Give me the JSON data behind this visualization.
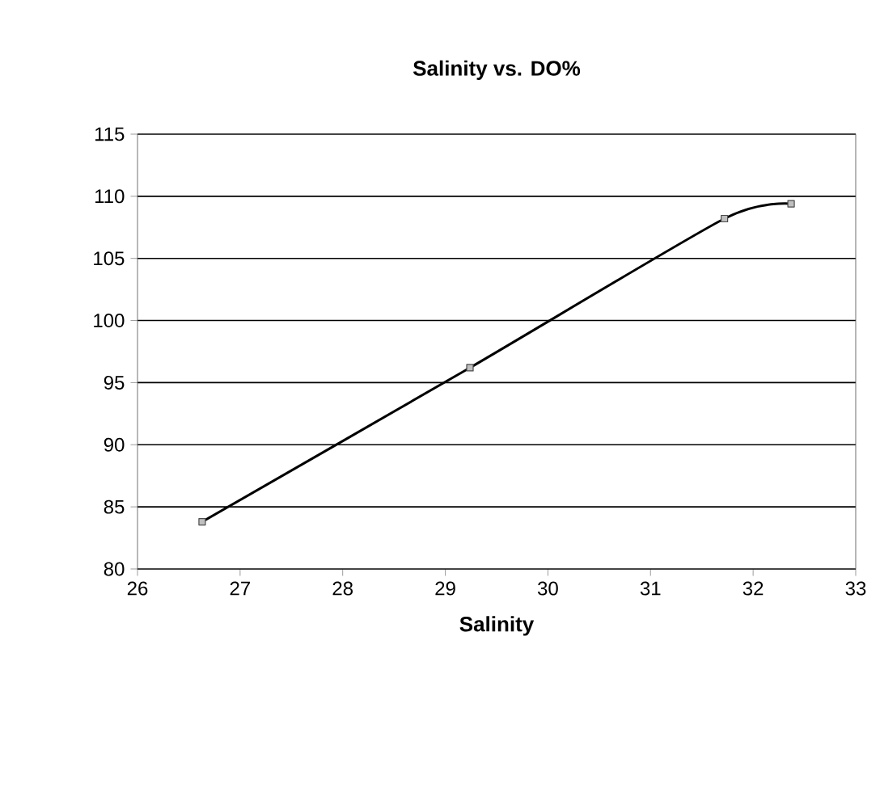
{
  "chart_data": {
    "type": "line",
    "title": "Salinity vs. DO%",
    "xlabel": "Salinity",
    "x": [
      26.63,
      29.24,
      31.72,
      32.37
    ],
    "series": [
      {
        "color": "#000000",
        "values": [
          83.8,
          96.2,
          108.2,
          109.4
        ]
      }
    ],
    "xlim": [
      26,
      33
    ],
    "xticks": [
      26,
      27,
      28,
      29,
      30,
      31,
      32,
      33
    ],
    "ylim": [
      80,
      115
    ],
    "yticks": [
      80,
      85,
      90,
      95,
      100,
      105,
      110,
      115
    ],
    "grid": "y",
    "marker": "square",
    "line_style": "solid"
  }
}
